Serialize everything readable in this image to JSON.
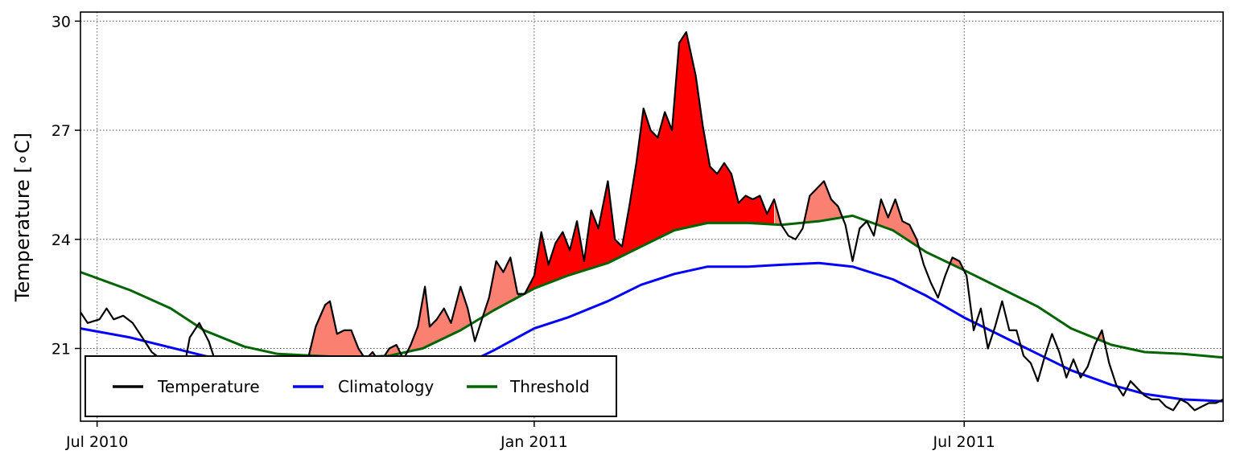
{
  "chart_data": {
    "type": "line",
    "title": "",
    "xlabel": "",
    "ylabel": "Temperature [",
    "ylabel_unit": "∘C",
    "ylabel_close": "]",
    "xlim": [
      "2010-06-24",
      "2011-10-18"
    ],
    "ylim": [
      19.0,
      30.25
    ],
    "x_ticks": [
      {
        "date": "2010-07-01",
        "label": "Jul 2010"
      },
      {
        "date": "2011-01-01",
        "label": "Jan 2011"
      },
      {
        "date": "2011-07-01",
        "label": "Jul 2011"
      }
    ],
    "y_ticks": [
      21,
      24,
      27,
      30
    ],
    "y_tick_labels": [
      "21",
      "24",
      "27",
      "30"
    ],
    "grid": true,
    "legend": {
      "placement": "bottom-left",
      "entries": [
        "Temperature",
        "Climatology",
        "Threshold"
      ]
    },
    "colors": {
      "temperature": "#000000",
      "climatology": "#0000ff",
      "threshold": "#006400",
      "event_fill": "#fa8072",
      "peak_event_fill": "#ff0000"
    },
    "peak_event_range": [
      "2010-12-25",
      "2011-04-12"
    ],
    "series": [
      {
        "name": "Temperature",
        "points": [
          [
            "2010-06-24",
            22.0
          ],
          [
            "2010-06-27",
            21.7
          ],
          [
            "2010-07-02",
            21.8
          ],
          [
            "2010-07-05",
            22.1
          ],
          [
            "2010-07-08",
            21.8
          ],
          [
            "2010-07-12",
            21.9
          ],
          [
            "2010-07-16",
            21.7
          ],
          [
            "2010-07-20",
            21.3
          ],
          [
            "2010-07-24",
            20.9
          ],
          [
            "2010-07-28",
            20.7
          ],
          [
            "2010-08-01",
            20.2
          ],
          [
            "2010-08-05",
            19.9
          ],
          [
            "2010-08-09",
            21.3
          ],
          [
            "2010-08-13",
            21.7
          ],
          [
            "2010-08-17",
            21.2
          ],
          [
            "2010-08-21",
            20.4
          ],
          [
            "2010-08-25",
            20.1
          ],
          [
            "2010-08-29",
            20.5
          ],
          [
            "2010-09-02",
            20.0
          ],
          [
            "2010-09-06",
            19.9
          ],
          [
            "2010-09-10",
            20.0
          ],
          [
            "2010-09-14",
            20.2
          ],
          [
            "2010-09-18",
            20.1
          ],
          [
            "2010-09-22",
            20.4
          ],
          [
            "2010-09-27",
            20.5
          ],
          [
            "2010-10-01",
            21.6
          ],
          [
            "2010-10-05",
            22.2
          ],
          [
            "2010-10-07",
            22.3
          ],
          [
            "2010-10-10",
            21.4
          ],
          [
            "2010-10-13",
            21.5
          ],
          [
            "2010-10-16",
            21.5
          ],
          [
            "2010-10-19",
            21.0
          ],
          [
            "2010-10-22",
            20.7
          ],
          [
            "2010-10-25",
            20.9
          ],
          [
            "2010-10-28",
            20.6
          ],
          [
            "2010-11-01",
            21.0
          ],
          [
            "2010-11-04",
            21.1
          ],
          [
            "2010-11-07",
            20.7
          ],
          [
            "2010-11-10",
            21.1
          ],
          [
            "2010-11-13",
            21.6
          ],
          [
            "2010-11-16",
            22.7
          ],
          [
            "2010-11-18",
            21.6
          ],
          [
            "2010-11-21",
            21.8
          ],
          [
            "2010-11-24",
            22.1
          ],
          [
            "2010-11-27",
            21.7
          ],
          [
            "2010-12-01",
            22.7
          ],
          [
            "2010-12-04",
            22.1
          ],
          [
            "2010-12-07",
            21.2
          ],
          [
            "2010-12-10",
            21.8
          ],
          [
            "2010-12-13",
            22.4
          ],
          [
            "2010-12-16",
            23.4
          ],
          [
            "2010-12-19",
            23.1
          ],
          [
            "2010-12-22",
            23.5
          ],
          [
            "2010-12-25",
            22.5
          ],
          [
            "2010-12-28",
            22.5
          ],
          [
            "2011-01-01",
            23.0
          ],
          [
            "2011-01-04",
            24.2
          ],
          [
            "2011-01-07",
            23.3
          ],
          [
            "2011-01-10",
            23.9
          ],
          [
            "2011-01-13",
            24.2
          ],
          [
            "2011-01-16",
            23.7
          ],
          [
            "2011-01-19",
            24.5
          ],
          [
            "2011-01-22",
            23.4
          ],
          [
            "2011-01-25",
            24.8
          ],
          [
            "2011-01-28",
            24.3
          ],
          [
            "2011-02-01",
            25.6
          ],
          [
            "2011-02-04",
            24.0
          ],
          [
            "2011-02-07",
            23.8
          ],
          [
            "2011-02-10",
            24.9
          ],
          [
            "2011-02-13",
            26.1
          ],
          [
            "2011-02-16",
            27.6
          ],
          [
            "2011-02-19",
            27.0
          ],
          [
            "2011-02-22",
            26.8
          ],
          [
            "2011-02-25",
            27.5
          ],
          [
            "2011-02-28",
            27.0
          ],
          [
            "2011-03-03",
            29.4
          ],
          [
            "2011-03-06",
            29.7
          ],
          [
            "2011-03-10",
            28.5
          ],
          [
            "2011-03-13",
            27.1
          ],
          [
            "2011-03-16",
            26.0
          ],
          [
            "2011-03-19",
            25.8
          ],
          [
            "2011-03-22",
            26.1
          ],
          [
            "2011-03-25",
            25.8
          ],
          [
            "2011-03-28",
            25.0
          ],
          [
            "2011-03-31",
            25.2
          ],
          [
            "2011-04-03",
            25.1
          ],
          [
            "2011-04-06",
            25.2
          ],
          [
            "2011-04-09",
            24.7
          ],
          [
            "2011-04-12",
            25.1
          ],
          [
            "2011-04-15",
            24.4
          ],
          [
            "2011-04-18",
            24.1
          ],
          [
            "2011-04-21",
            24.0
          ],
          [
            "2011-04-24",
            24.3
          ],
          [
            "2011-04-27",
            25.2
          ],
          [
            "2011-04-30",
            25.4
          ],
          [
            "2011-05-03",
            25.6
          ],
          [
            "2011-05-06",
            25.1
          ],
          [
            "2011-05-09",
            24.9
          ],
          [
            "2011-05-12",
            24.4
          ],
          [
            "2011-05-15",
            23.4
          ],
          [
            "2011-05-18",
            24.3
          ],
          [
            "2011-05-21",
            24.5
          ],
          [
            "2011-05-24",
            24.1
          ],
          [
            "2011-05-27",
            25.1
          ],
          [
            "2011-05-30",
            24.6
          ],
          [
            "2011-06-02",
            25.1
          ],
          [
            "2011-06-05",
            24.5
          ],
          [
            "2011-06-08",
            24.4
          ],
          [
            "2011-06-11",
            24.0
          ],
          [
            "2011-06-14",
            23.3
          ],
          [
            "2011-06-17",
            22.8
          ],
          [
            "2011-06-20",
            22.4
          ],
          [
            "2011-06-23",
            23.0
          ],
          [
            "2011-06-26",
            23.5
          ],
          [
            "2011-06-29",
            23.4
          ],
          [
            "2011-07-02",
            23.0
          ],
          [
            "2011-07-05",
            21.5
          ],
          [
            "2011-07-08",
            22.1
          ],
          [
            "2011-07-11",
            21.0
          ],
          [
            "2011-07-14",
            21.6
          ],
          [
            "2011-07-17",
            22.3
          ],
          [
            "2011-07-20",
            21.5
          ],
          [
            "2011-07-23",
            21.5
          ],
          [
            "2011-07-26",
            20.8
          ],
          [
            "2011-07-29",
            20.6
          ],
          [
            "2011-08-01",
            20.1
          ],
          [
            "2011-08-04",
            20.8
          ],
          [
            "2011-08-07",
            21.4
          ],
          [
            "2011-08-10",
            20.9
          ],
          [
            "2011-08-13",
            20.2
          ],
          [
            "2011-08-16",
            20.7
          ],
          [
            "2011-08-19",
            20.2
          ],
          [
            "2011-08-22",
            20.5
          ],
          [
            "2011-08-25",
            21.1
          ],
          [
            "2011-08-28",
            21.5
          ],
          [
            "2011-08-31",
            20.6
          ],
          [
            "2011-09-03",
            20.0
          ],
          [
            "2011-09-06",
            19.7
          ],
          [
            "2011-09-09",
            20.1
          ],
          [
            "2011-09-12",
            19.9
          ],
          [
            "2011-09-15",
            19.7
          ],
          [
            "2011-09-18",
            19.6
          ],
          [
            "2011-09-21",
            19.6
          ],
          [
            "2011-09-24",
            19.4
          ],
          [
            "2011-09-27",
            19.3
          ],
          [
            "2011-09-30",
            19.6
          ],
          [
            "2011-10-03",
            19.5
          ],
          [
            "2011-10-06",
            19.3
          ],
          [
            "2011-10-09",
            19.4
          ],
          [
            "2011-10-12",
            19.5
          ],
          [
            "2011-10-15",
            19.5
          ],
          [
            "2011-10-18",
            19.6
          ]
        ]
      },
      {
        "name": "Climatology",
        "points": [
          [
            "2010-06-24",
            21.55
          ],
          [
            "2010-07-15",
            21.3
          ],
          [
            "2010-08-15",
            20.8
          ],
          [
            "2010-09-15",
            20.35
          ],
          [
            "2010-10-15",
            20.1
          ],
          [
            "2010-11-15",
            20.2
          ],
          [
            "2010-12-01",
            20.5
          ],
          [
            "2010-12-15",
            20.95
          ],
          [
            "2011-01-01",
            21.55
          ],
          [
            "2011-01-15",
            21.85
          ],
          [
            "2011-02-01",
            22.3
          ],
          [
            "2011-02-15",
            22.75
          ],
          [
            "2011-03-01",
            23.05
          ],
          [
            "2011-03-15",
            23.25
          ],
          [
            "2011-04-01",
            23.25
          ],
          [
            "2011-04-15",
            23.3
          ],
          [
            "2011-05-01",
            23.35
          ],
          [
            "2011-05-15",
            23.25
          ],
          [
            "2011-06-01",
            22.9
          ],
          [
            "2011-06-15",
            22.45
          ],
          [
            "2011-07-01",
            21.85
          ],
          [
            "2011-07-15",
            21.4
          ],
          [
            "2011-08-01",
            20.85
          ],
          [
            "2011-08-15",
            20.4
          ],
          [
            "2011-09-01",
            20.0
          ],
          [
            "2011-09-15",
            19.75
          ],
          [
            "2011-10-01",
            19.6
          ],
          [
            "2011-10-18",
            19.55
          ]
        ]
      },
      {
        "name": "Threshold",
        "points": [
          [
            "2010-06-24",
            23.1
          ],
          [
            "2010-07-15",
            22.6
          ],
          [
            "2010-08-01",
            22.1
          ],
          [
            "2010-08-15",
            21.5
          ],
          [
            "2010-09-01",
            21.05
          ],
          [
            "2010-09-15",
            20.85
          ],
          [
            "2010-10-01",
            20.8
          ],
          [
            "2010-10-15",
            20.75
          ],
          [
            "2010-11-01",
            20.8
          ],
          [
            "2010-11-15",
            21.0
          ],
          [
            "2010-12-01",
            21.5
          ],
          [
            "2010-12-15",
            22.05
          ],
          [
            "2011-01-01",
            22.65
          ],
          [
            "2011-01-15",
            23.0
          ],
          [
            "2011-02-01",
            23.35
          ],
          [
            "2011-02-15",
            23.8
          ],
          [
            "2011-03-01",
            24.25
          ],
          [
            "2011-03-15",
            24.45
          ],
          [
            "2011-04-01",
            24.45
          ],
          [
            "2011-04-15",
            24.4
          ],
          [
            "2011-05-01",
            24.5
          ],
          [
            "2011-05-15",
            24.65
          ],
          [
            "2011-06-01",
            24.25
          ],
          [
            "2011-06-15",
            23.65
          ],
          [
            "2011-07-01",
            23.15
          ],
          [
            "2011-07-15",
            22.7
          ],
          [
            "2011-08-01",
            22.15
          ],
          [
            "2011-08-15",
            21.55
          ],
          [
            "2011-09-01",
            21.1
          ],
          [
            "2011-09-15",
            20.9
          ],
          [
            "2011-10-01",
            20.85
          ],
          [
            "2011-10-18",
            20.75
          ]
        ]
      }
    ]
  }
}
